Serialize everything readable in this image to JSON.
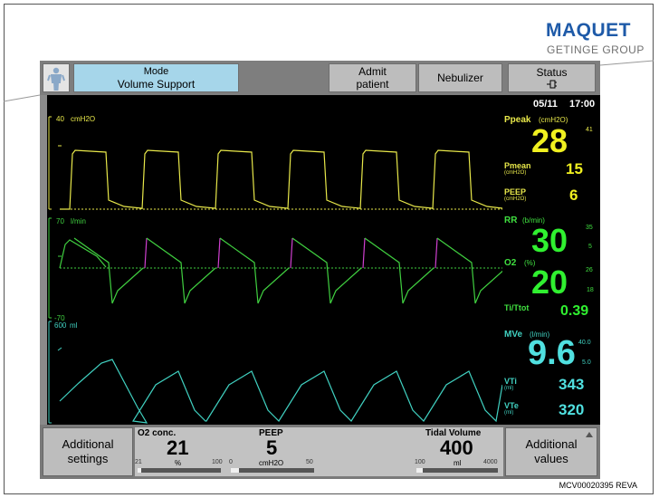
{
  "logo": {
    "name": "MAQUET",
    "group": "GETINGE GROUP"
  },
  "figure_id": "MCV00020395 REVA",
  "topbar": {
    "mode_label": "Mode",
    "mode_value": "Volume Support",
    "admit_l1": "Admit",
    "admit_l2": "patient",
    "nebulizer": "Nebulizer",
    "status_label": "Status",
    "status_icon": "battery-plug-icon",
    "person_icon": "person-icon"
  },
  "waveforms": {
    "pressure": {
      "scale": "40",
      "unit": "cmH2O",
      "color": "#e8e84a"
    },
    "flow": {
      "scale_top": "70",
      "unit": "l/min",
      "scale_bottom": "-70",
      "color": "#40d040",
      "accent": "#d040d0"
    },
    "volume": {
      "scale": "600",
      "unit": "ml",
      "color": "#40d0c0"
    }
  },
  "values": {
    "date": "05/11",
    "time": "17:00",
    "ppeak": {
      "label": "Ppeak",
      "unit": "(cmH2O)",
      "value": "28",
      "limit": "41"
    },
    "pmean": {
      "label": "Pmean",
      "unit": "(cmH2O)",
      "value": "15"
    },
    "peep": {
      "label": "PEEP",
      "unit": "(cmH2O)",
      "value": "6"
    },
    "rr": {
      "label": "RR",
      "unit": "(b/min)",
      "value": "30",
      "limit_hi": "35",
      "limit_lo": "5"
    },
    "o2": {
      "label": "O2",
      "unit": "(%)",
      "value": "20",
      "limit_hi": "26",
      "limit_lo": "18"
    },
    "titot": {
      "label": "Ti/Ttot",
      "value": "0.39"
    },
    "mve": {
      "label": "MVe",
      "unit": "(l/min)",
      "value": "9.6",
      "limit_hi": "40.0",
      "limit_lo": "5.0"
    },
    "vti": {
      "label": "VTi",
      "unit": "(ml)",
      "value": "343"
    },
    "vte": {
      "label": "VTe",
      "unit": "(ml)",
      "value": "320"
    }
  },
  "bottombar": {
    "additional_settings_l1": "Additional",
    "additional_settings_l2": "settings",
    "o2conc": {
      "title": "O2 conc.",
      "value": "21",
      "unit": "%",
      "min": "21",
      "max": "100",
      "fraction": 0.0
    },
    "peep": {
      "title": "PEEP",
      "value": "5",
      "unit": "cmH2O",
      "min": "0",
      "max": "50",
      "fraction": 0.1
    },
    "tidal": {
      "title": "Tidal Volume",
      "value": "400",
      "unit": "ml",
      "min": "100",
      "max": "4000",
      "fraction": 0.08
    },
    "additional_values_l1": "Additional",
    "additional_values_l2": "values"
  }
}
